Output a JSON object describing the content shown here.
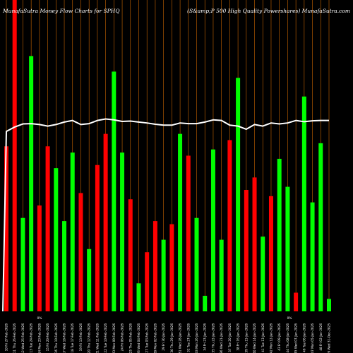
{
  "chart_data": {
    "type": "bar",
    "title_left": "MunafaSutra  Money Flow  Charts for SPHQ",
    "title_right": "(S&amp;P 500  High Quality Powershares) MunafaSutra.com",
    "colors": {
      "up": "#00ff00",
      "down": "#ff0000",
      "line": "#ffffff",
      "grid": "#cc6600",
      "background": "#000000"
    },
    "ylim": [
      0,
      100
    ],
    "categories": [
      "10 Fri 27-Feb-2026",
      "11 Thu 26-Feb-2026",
      "12 Wed 25-Feb-2026",
      "13 Tue 24-Feb-2026",
      "14 Mon 23-Feb-2026",
      "15 Fri 20-Feb-2026",
      "16 Thu 19-Feb-2026",
      "17 Wed 18-Feb-2026",
      "18 Tue 17-Feb-2026",
      "19 Fri 13-Feb-2026",
      "20 Thu 12-Feb-2026",
      "21 Wed 11-Feb-2026",
      "22 Tue 10-Feb-2026",
      "23 Mon 09-Feb-2026",
      "24 Fri 06-Feb-2026",
      "25 Thu 05-Feb-2026",
      "26 Wed 04-Feb-2026",
      "27 Tue 03-Feb-2026",
      "28 Mon 02-Feb-2026",
      "29 Fri 30-Jan-2026",
      "30 Thu 29-Jan-2026",
      "31 Wed 28-Jan-2026",
      "32 Tue 27-Jan-2026",
      "33 Mon 26-Jan-2026",
      "34 Fri 23-Jan-2026",
      "35 Thu 22-Jan-2026",
      "36 Wed 21-Jan-2026",
      "37 Tue 20-Jan-2026",
      "38 Fri 16-Jan-2026",
      "39 Thu 15-Jan-2026",
      "40 Wed 14-Jan-2026",
      "41 Tue 13-Jan-2026",
      "42 Mon 12-Jan-2026",
      "43 Fri 09-Jan-2026",
      "44 Thu 08-Jan-2026",
      "45 Wed 07-Jan-2026",
      "46 Tue 06-Jan-2026",
      "47 Mon 05-Jan-2026",
      "48 Fri 02-Jan-2026",
      "49 Wed 31-Dec-2025"
    ],
    "series": [
      {
        "values": [
          53,
          100,
          30,
          82,
          34,
          53,
          46,
          29,
          51,
          38,
          20,
          47,
          57,
          77,
          51,
          36,
          9,
          19,
          29,
          23,
          28,
          57,
          50,
          30,
          5,
          52,
          23,
          55,
          75,
          39,
          43,
          24,
          37,
          49,
          40,
          6,
          69,
          35,
          54,
          4
        ]
      }
    ],
    "bar_colors": [
      "red",
      "red",
      "green",
      "green",
      "red",
      "red",
      "green",
      "green",
      "green",
      "red",
      "green",
      "red",
      "red",
      "green",
      "green",
      "red",
      "green",
      "red",
      "red",
      "green",
      "red",
      "green",
      "red",
      "green",
      "green",
      "green",
      "green",
      "red",
      "green",
      "red",
      "red",
      "green",
      "red",
      "green",
      "green",
      "red",
      "green",
      "green",
      "green",
      "green"
    ],
    "line": [
      57.8,
      59.2,
      60.2,
      60.3,
      60,
      59.5,
      60,
      60.8,
      61.3,
      60,
      60.3,
      61.3,
      61.8,
      61.5,
      61,
      61.1,
      60.8,
      60.5,
      60.1,
      59.8,
      59.8,
      60.5,
      60.3,
      60.3,
      60.8,
      61.5,
      61.3,
      59.8,
      59.5,
      58.5,
      60,
      59.5,
      60.5,
      60.2,
      60.5,
      61.3,
      60.9,
      61.2,
      61.3,
      61.3
    ],
    "separator_labels": [
      "0%",
      "0%"
    ]
  }
}
